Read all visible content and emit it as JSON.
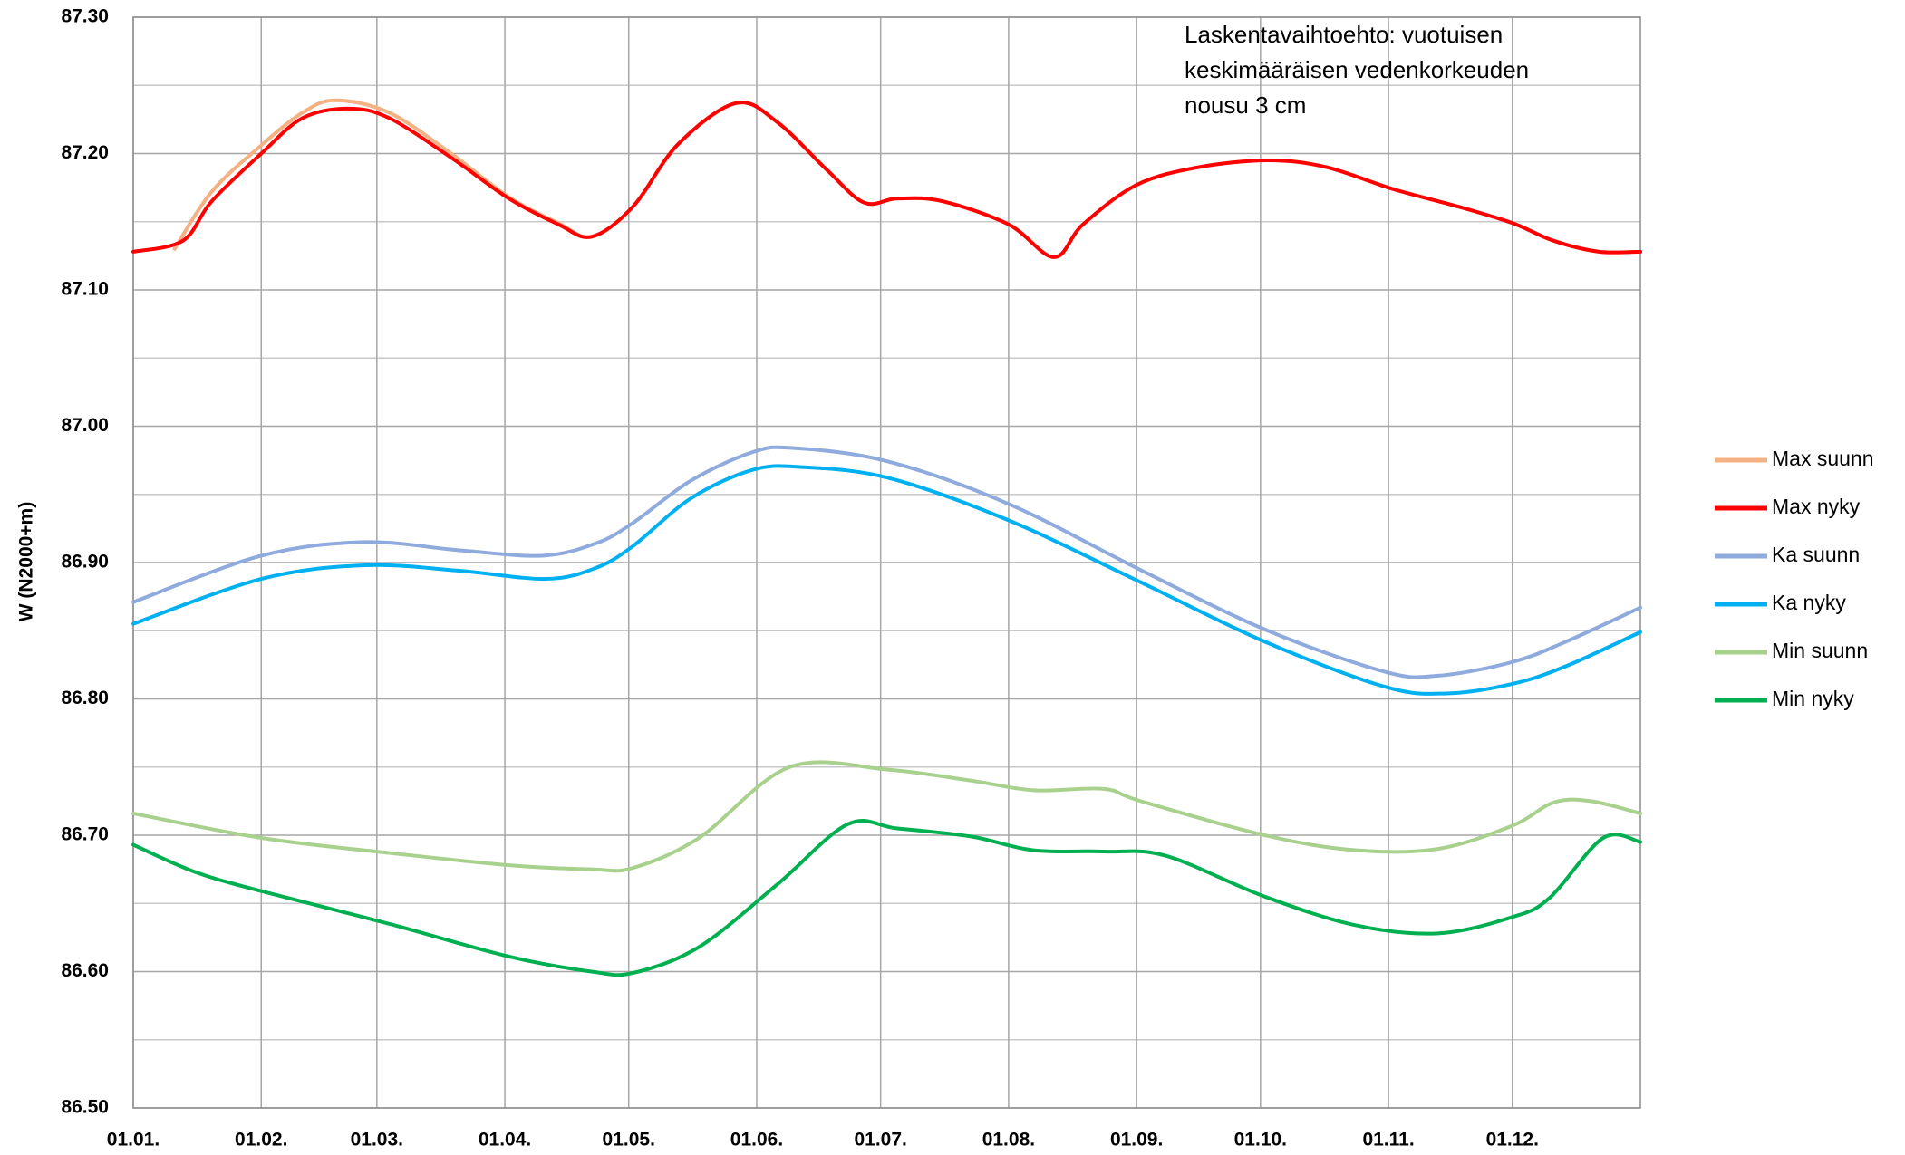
{
  "chart_data": {
    "type": "line",
    "ylabel": "W (N2000+m)",
    "annotation": [
      "Laskentavaihtoehto: vuotuisen",
      "keskimääräisen vedenkorkeuden",
      "nousu 3 cm"
    ],
    "xlim": [
      0,
      365
    ],
    "xticks": [
      {
        "value": 0,
        "label": "01.01."
      },
      {
        "value": 31,
        "label": "01.02."
      },
      {
        "value": 59,
        "label": "01.03."
      },
      {
        "value": 90,
        "label": "01.04."
      },
      {
        "value": 120,
        "label": "01.05."
      },
      {
        "value": 151,
        "label": "01.06."
      },
      {
        "value": 181,
        "label": "01.07."
      },
      {
        "value": 212,
        "label": "01.08."
      },
      {
        "value": 243,
        "label": "01.09."
      },
      {
        "value": 273,
        "label": "01.10."
      },
      {
        "value": 304,
        "label": "01.11."
      },
      {
        "value": 334,
        "label": "01.12."
      }
    ],
    "ylim": [
      86.5,
      87.3
    ],
    "yticks": [
      {
        "value": 86.5,
        "label": "86.50"
      },
      {
        "value": 86.6,
        "label": "86.60"
      },
      {
        "value": 86.7,
        "label": "86.70"
      },
      {
        "value": 86.8,
        "label": "86.80"
      },
      {
        "value": 86.9,
        "label": "86.90"
      },
      {
        "value": 87.0,
        "label": "87.00"
      },
      {
        "value": 87.1,
        "label": "87.10"
      },
      {
        "value": 87.2,
        "label": "87.20"
      },
      {
        "value": 87.3,
        "label": "87.30"
      }
    ],
    "yminorticks": [
      86.55,
      86.65,
      86.75,
      86.85,
      86.95,
      87.05,
      87.15,
      87.25
    ],
    "grid": true,
    "legend": "right",
    "series": [
      {
        "name": "Max suunn",
        "color": "#f4b183",
        "x": [
          10,
          19,
          31,
          41,
          49,
          62,
          77,
          91,
          103,
          111,
          121,
          132,
          146,
          156,
          168,
          177,
          185,
          196,
          212,
          223,
          230,
          243,
          258,
          275,
          289,
          305,
          321,
          334,
          344,
          355,
          365
        ],
        "values": [
          87.13,
          87.172,
          87.206,
          87.23,
          87.239,
          87.23,
          87.2,
          87.168,
          87.149,
          87.139,
          87.161,
          87.207,
          87.237,
          87.223,
          87.188,
          87.164,
          87.167,
          87.165,
          87.148,
          87.124,
          87.148,
          87.177,
          87.19,
          87.195,
          87.19,
          87.174,
          87.161,
          87.149,
          87.136,
          87.128,
          87.128
        ]
      },
      {
        "name": "Max nyky",
        "color": "#ff0000",
        "x": [
          0,
          12,
          19,
          31,
          41,
          52,
          62,
          77,
          91,
          103,
          111,
          121,
          132,
          146,
          156,
          168,
          177,
          185,
          196,
          212,
          223,
          230,
          243,
          258,
          275,
          289,
          305,
          321,
          334,
          344,
          355,
          365
        ],
        "values": [
          87.128,
          87.136,
          87.165,
          87.2,
          87.226,
          87.233,
          87.226,
          87.197,
          87.167,
          87.148,
          87.139,
          87.161,
          87.207,
          87.237,
          87.223,
          87.188,
          87.164,
          87.167,
          87.165,
          87.148,
          87.124,
          87.148,
          87.177,
          87.19,
          87.195,
          87.19,
          87.174,
          87.161,
          87.149,
          87.136,
          87.128,
          87.128
        ]
      },
      {
        "name": "Ka suunn",
        "color": "#8faadc",
        "x": [
          0,
          31,
          56,
          79,
          99,
          112,
          121,
          135,
          150,
          160,
          183,
          212,
          243,
          274,
          303,
          316,
          334,
          347,
          365
        ],
        "values": [
          86.871,
          86.905,
          86.915,
          86.909,
          86.905,
          86.914,
          86.929,
          86.96,
          86.981,
          86.984,
          86.974,
          86.943,
          86.896,
          86.851,
          86.82,
          86.817,
          86.827,
          86.842,
          86.867
        ]
      },
      {
        "name": "Ka nyky",
        "color": "#00b0f0",
        "x": [
          0,
          31,
          56,
          79,
          100,
          112,
          121,
          135,
          150,
          162,
          183,
          212,
          243,
          274,
          303,
          318,
          334,
          347,
          365
        ],
        "values": [
          86.855,
          86.888,
          86.898,
          86.894,
          86.888,
          86.896,
          86.912,
          86.947,
          86.968,
          86.97,
          86.962,
          86.931,
          86.887,
          86.842,
          86.809,
          86.804,
          86.811,
          86.824,
          86.849
        ]
      },
      {
        "name": "Min suunn",
        "color": "#a9d18e",
        "x": [
          0,
          31,
          62,
          91,
          111,
          121,
          137,
          159,
          183,
          203,
          218,
          235,
          244,
          274,
          296,
          316,
          334,
          344,
          353,
          365
        ],
        "values": [
          86.716,
          86.698,
          86.687,
          86.678,
          86.675,
          86.676,
          86.698,
          86.75,
          86.748,
          86.74,
          86.733,
          86.734,
          86.725,
          86.7,
          86.689,
          86.69,
          86.707,
          86.724,
          86.725,
          86.716
        ]
      },
      {
        "name": "Min nyky",
        "color": "#00b050",
        "x": [
          0,
          15,
          31,
          62,
          91,
          111,
          121,
          137,
          156,
          173,
          185,
          203,
          218,
          235,
          250,
          274,
          296,
          316,
          334,
          343,
          356,
          365
        ],
        "values": [
          86.693,
          86.673,
          86.659,
          86.635,
          86.611,
          86.6,
          86.599,
          86.618,
          86.664,
          86.708,
          86.705,
          86.699,
          86.689,
          86.688,
          86.685,
          86.655,
          86.634,
          86.628,
          86.64,
          86.654,
          86.698,
          86.695
        ]
      }
    ]
  }
}
